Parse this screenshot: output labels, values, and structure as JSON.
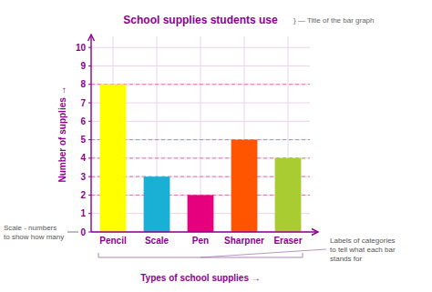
{
  "chart_data": {
    "type": "bar",
    "title": "School supplies students use",
    "x_label": "Types of school supplies  →",
    "y_label": "Number of supplies →",
    "categories": [
      "Pencil",
      "Scale",
      "Pen",
      "Sharpner",
      "Eraser"
    ],
    "values": [
      8,
      3,
      2,
      5,
      4
    ],
    "colors": [
      "#ffff00",
      "#1ab0d5",
      "#e6007e",
      "#ff5500",
      "#aacc33"
    ],
    "ylim": [
      0,
      10.6
    ],
    "yticks": [
      0,
      1,
      2,
      3,
      4,
      5,
      6,
      7,
      8,
      9,
      10
    ],
    "grid": true,
    "reference_lines": [
      2,
      3,
      4,
      5,
      8
    ],
    "annotations": [
      "} — Title of the bar graph",
      "Scale - numbers \nto show how many",
      "Labels of categories\nto tell what each bar\nstands for"
    ]
  }
}
